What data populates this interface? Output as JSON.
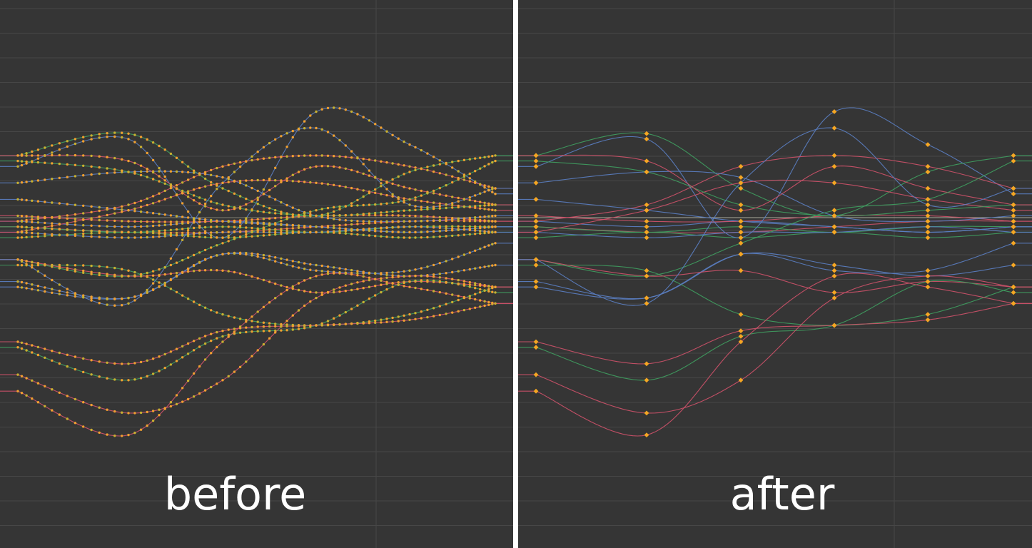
{
  "panels": {
    "before": {
      "caption": "before",
      "key_density": "dense"
    },
    "after": {
      "caption": "after",
      "key_density": "sparse"
    }
  },
  "colors": {
    "background": "#353535",
    "grid": "#474747",
    "divider": "#ffffff",
    "key_before": "#f0a030",
    "key_after": "#f5a623",
    "curve_red": "#d0526a",
    "curve_green": "#3fa060",
    "curve_blue": "#5b7fc4",
    "baseline": "#c8c8b4"
  },
  "curves": [
    {
      "color": "red",
      "values": [
        0.32,
        0.33,
        0.33,
        0.32,
        0.31,
        0.31
      ]
    },
    {
      "color": "green",
      "values": [
        0.32,
        0.33,
        0.32,
        0.33,
        0.32,
        0.32
      ]
    },
    {
      "color": "blue",
      "values": [
        0.31,
        0.32,
        0.31,
        0.32,
        0.33,
        0.32
      ]
    },
    {
      "color": "red",
      "values": [
        0.3,
        0.31,
        0.31,
        0.3,
        0.3,
        0.31
      ]
    },
    {
      "color": "green",
      "values": [
        0.34,
        0.33,
        0.34,
        0.33,
        0.34,
        0.33
      ]
    },
    {
      "color": "blue",
      "values": [
        0.33,
        0.34,
        0.33,
        0.33,
        0.32,
        0.33
      ]
    },
    {
      "color": "blue",
      "values": [
        0.21,
        0.16,
        0.34,
        0.11,
        0.17,
        0.26
      ]
    },
    {
      "color": "green",
      "values": [
        0.19,
        0.15,
        0.25,
        0.3,
        0.22,
        0.19
      ]
    },
    {
      "color": "red",
      "values": [
        0.31,
        0.28,
        0.21,
        0.19,
        0.21,
        0.25
      ]
    },
    {
      "color": "blue",
      "values": [
        0.24,
        0.22,
        0.23,
        0.3,
        0.31,
        0.3
      ]
    },
    {
      "color": "red",
      "values": [
        0.33,
        0.29,
        0.24,
        0.24,
        0.27,
        0.29
      ]
    },
    {
      "color": "green",
      "values": [
        0.2,
        0.22,
        0.28,
        0.3,
        0.29,
        0.28
      ]
    },
    {
      "color": "blue",
      "values": [
        0.27,
        0.29,
        0.31,
        0.32,
        0.33,
        0.32
      ]
    },
    {
      "color": "red",
      "values": [
        0.19,
        0.2,
        0.29,
        0.21,
        0.25,
        0.28
      ]
    },
    {
      "color": "green",
      "values": [
        0.38,
        0.41,
        0.35,
        0.29,
        0.27,
        0.2
      ]
    },
    {
      "color": "blue",
      "values": [
        0.42,
        0.45,
        0.37,
        0.39,
        0.41,
        0.39
      ]
    },
    {
      "color": "green",
      "values": [
        0.39,
        0.4,
        0.48,
        0.5,
        0.48,
        0.43
      ]
    },
    {
      "color": "blue",
      "values": [
        0.43,
        0.45,
        0.37,
        0.4,
        0.4,
        0.35
      ]
    },
    {
      "color": "red",
      "values": [
        0.38,
        0.41,
        0.4,
        0.44,
        0.42,
        0.43
      ]
    },
    {
      "color": "green",
      "values": [
        0.54,
        0.6,
        0.52,
        0.5,
        0.42,
        0.44
      ]
    },
    {
      "color": "red",
      "values": [
        0.53,
        0.57,
        0.51,
        0.5,
        0.49,
        0.46
      ]
    },
    {
      "color": "red",
      "values": [
        0.59,
        0.66,
        0.6,
        0.45,
        0.41,
        0.43
      ]
    },
    {
      "color": "red",
      "values": [
        0.62,
        0.7,
        0.53,
        0.41,
        0.43,
        0.46
      ]
    },
    {
      "color": "blue",
      "values": [
        0.38,
        0.46,
        0.24,
        0.14,
        0.28,
        0.25
      ]
    }
  ]
}
